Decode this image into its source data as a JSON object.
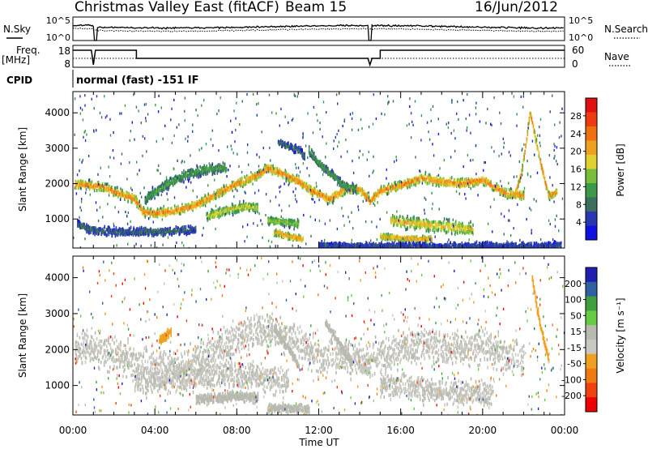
{
  "header": {
    "station": "Christmas Valley East (fitACF)",
    "beam": "Beam 15",
    "date": "16/Jun/2012"
  },
  "aux": {
    "nsky_label": "N.Sky",
    "nsearch_label": "N.Search",
    "freq_label_1": "Freq.",
    "freq_label_2": "[MHz]",
    "nave_label": "Nave",
    "cpid_label": "CPID",
    "cpid_text": "normal (fast) -151 IF",
    "noise_left_ticks": [
      "10^5",
      "10^0"
    ],
    "noise_right_ticks": [
      "10^5",
      "10^0"
    ],
    "freq_ticks": [
      "18",
      "8"
    ],
    "nave_ticks": [
      "60",
      "0"
    ]
  },
  "colors": {
    "power_scale": [
      "#1010e0",
      "#2838b0",
      "#3a6f60",
      "#3a9a48",
      "#78be3a",
      "#e0d030",
      "#f0a020",
      "#f07010",
      "#f03a10",
      "#e01010"
    ],
    "velocity_scale": [
      "#ee0000",
      "#f04010",
      "#f07a10",
      "#f0a020",
      "#c8c8c0",
      "#b8bab0",
      "#66cc44",
      "#40a040",
      "#3060a0",
      "#2020b0"
    ]
  },
  "chart_data": [
    {
      "type": "heatmap",
      "name": "power",
      "xlabel": "",
      "ylabel": "Slant Range [km]",
      "x_ticks": [
        "00:00",
        "04:00",
        "08:00",
        "12:00",
        "16:00",
        "20:00",
        "00:00"
      ],
      "xlim": [
        0,
        24
      ],
      "y_ticks": [
        1000,
        2000,
        3000,
        4000
      ],
      "ylim": [
        180,
        4600
      ],
      "colorbar": {
        "label": "Power [dB]",
        "ticks": [
          "4",
          "8",
          "12",
          "16",
          "20",
          "24",
          "28"
        ],
        "range": [
          0,
          32
        ]
      },
      "features": [
        {
          "points": [
            [
              0.1,
              2020
            ],
            [
              0.5,
              2010
            ],
            [
              1.0,
              1980
            ],
            [
              1.5,
              1940
            ],
            [
              2.0,
              1820
            ],
            [
              2.5,
              1720
            ],
            [
              3.0,
              1600
            ],
            [
              3.4,
              1240
            ],
            [
              4.0,
              1200
            ],
            [
              5.0,
              1280
            ],
            [
              6.0,
              1450
            ],
            [
              7.0,
              1750
            ],
            [
              8.0,
              2050
            ],
            [
              9.0,
              2280
            ],
            [
              9.5,
              2480
            ],
            [
              10.0,
              2380
            ],
            [
              11.0,
              2100
            ],
            [
              11.6,
              1850
            ],
            [
              12.0,
              1750
            ],
            [
              12.5,
              1600
            ],
            [
              13.3,
              1900
            ],
            [
              14.0,
              1880
            ],
            [
              14.5,
              1550
            ],
            [
              15.0,
              1850
            ],
            [
              16.0,
              2000
            ],
            [
              17.0,
              2200
            ],
            [
              18.0,
              2100
            ],
            [
              19.0,
              2050
            ],
            [
              20.0,
              2150
            ],
            [
              21.0,
              1800
            ],
            [
              21.5,
              1750
            ],
            [
              22.0,
              1700
            ]
          ],
          "width": 120,
          "value": 24
        },
        {
          "points": [
            [
              6.5,
              1100
            ],
            [
              7.5,
              1300
            ],
            [
              8.5,
              1400
            ],
            [
              9.0,
              1350
            ]
          ],
          "width": 130,
          "value": 18
        },
        {
          "points": [
            [
              9.5,
              1000
            ],
            [
              10.5,
              950
            ],
            [
              11.0,
              900
            ]
          ],
          "width": 110,
          "value": 16
        },
        {
          "points": [
            [
              9.8,
              680
            ],
            [
              10.5,
              560
            ],
            [
              11.2,
              480
            ]
          ],
          "width": 90,
          "value": 22
        },
        {
          "points": [
            [
              15.5,
              1000
            ],
            [
              17.0,
              900
            ],
            [
              18.5,
              820
            ],
            [
              19.5,
              760
            ]
          ],
          "width": 170,
          "value": 20
        },
        {
          "points": [
            [
              15.0,
              550
            ],
            [
              16.0,
              500
            ],
            [
              17.5,
              480
            ]
          ],
          "width": 80,
          "value": 22
        },
        {
          "points": [
            [
              11.5,
              3000
            ],
            [
              12.0,
              2600
            ],
            [
              12.6,
              2300
            ],
            [
              13.2,
              2000
            ],
            [
              13.8,
              1900
            ]
          ],
          "width": 110,
          "value": 12
        },
        {
          "points": [
            [
              3.5,
              1600
            ],
            [
              4.5,
              2000
            ],
            [
              5.5,
              2300
            ],
            [
              6.5,
              2450
            ],
            [
              7.5,
              2500
            ]
          ],
          "width": 150,
          "value": 12
        },
        {
          "points": [
            [
              10.0,
              3200
            ],
            [
              11.0,
              3000
            ],
            [
              11.3,
              2800
            ]
          ],
          "width": 100,
          "value": 8
        },
        {
          "points": [
            [
              0.2,
              900
            ],
            [
              0.8,
              760
            ],
            [
              1.3,
              700
            ],
            [
              3.0,
              680
            ],
            [
              4.5,
              700
            ],
            [
              6.0,
              760
            ]
          ],
          "width": 110,
          "value": 8
        },
        {
          "points": [
            [
              21.6,
              1800
            ],
            [
              21.9,
              2400
            ],
            [
              22.1,
              3200
            ],
            [
              22.3,
              4050
            ],
            [
              22.6,
              3200
            ],
            [
              22.9,
              2400
            ],
            [
              23.2,
              1700
            ],
            [
              23.6,
              1800
            ]
          ],
          "width": 90,
          "value": 24
        },
        {
          "points": [
            [
              12.0,
              300
            ],
            [
              14.0,
              280
            ],
            [
              16.0,
              300
            ],
            [
              18.0,
              260
            ],
            [
              20.0,
              300
            ],
            [
              22.0,
              280
            ],
            [
              23.8,
              300
            ]
          ],
          "width": 90,
          "value": 6
        }
      ]
    },
    {
      "type": "heatmap",
      "name": "velocity",
      "xlabel": "Time UT",
      "ylabel": "Slant Range [km]",
      "x_ticks": [
        "00:00",
        "04:00",
        "08:00",
        "12:00",
        "16:00",
        "20:00",
        "00:00"
      ],
      "xlim": [
        0,
        24
      ],
      "y_ticks": [
        1000,
        2000,
        3000,
        4000
      ],
      "ylim": [
        180,
        4600
      ],
      "colorbar": {
        "label": "Velocity [m s⁻¹]",
        "ticks": [
          "200",
          "100",
          "50",
          "15",
          "-15",
          "-50",
          "-100",
          "-200"
        ],
        "range": [
          -250,
          250
        ]
      },
      "features": [
        {
          "points": [
            [
              0.1,
              2100
            ],
            [
              1.0,
              2050
            ],
            [
              2.0,
              1900
            ],
            [
              3.0,
              1700
            ],
            [
              4.0,
              1550
            ],
            [
              5.0,
              1550
            ],
            [
              6.0,
              1750
            ],
            [
              7.0,
              2050
            ],
            [
              8.0,
              2350
            ],
            [
              9.0,
              2600
            ],
            [
              10.0,
              2500
            ],
            [
              11.0,
              2200
            ],
            [
              12.0,
              1800
            ],
            [
              13.0,
              1850
            ],
            [
              14.0,
              1800
            ],
            [
              15.0,
              1900
            ],
            [
              16.0,
              2050
            ],
            [
              17.0,
              2200
            ],
            [
              18.0,
              2100
            ],
            [
              19.0,
              2050
            ],
            [
              20.0,
              2150
            ],
            [
              21.0,
              1900
            ],
            [
              22.0,
              1750
            ]
          ],
          "width": 480,
          "value": 0
        },
        {
          "points": [
            [
              3.0,
              1150
            ],
            [
              5.0,
              1250
            ],
            [
              7.0,
              1350
            ],
            [
              9.0,
              1300
            ],
            [
              10.5,
              1100
            ]
          ],
          "width": 380,
          "value": 0
        },
        {
          "points": [
            [
              15.0,
              1100
            ],
            [
              17.0,
              950
            ],
            [
              19.0,
              850
            ],
            [
              20.5,
              800
            ]
          ],
          "width": 350,
          "value": 0
        },
        {
          "points": [
            [
              6.0,
              650
            ],
            [
              7.0,
              700
            ],
            [
              8.0,
              750
            ],
            [
              9.0,
              700
            ]
          ],
          "width": 140,
          "value": 40
        },
        {
          "points": [
            [
              9.5,
              400
            ],
            [
              10.5,
              420
            ],
            [
              11.5,
              380
            ]
          ],
          "width": 120,
          "value": 40
        },
        {
          "points": [
            [
              9.8,
              2650
            ],
            [
              10.2,
              2300
            ],
            [
              10.6,
              2000
            ],
            [
              11.0,
              1600
            ]
          ],
          "width": 90,
          "value": 40
        },
        {
          "points": [
            [
              12.3,
              2800
            ],
            [
              12.8,
              2400
            ],
            [
              13.2,
              2000
            ],
            [
              13.6,
              1700
            ]
          ],
          "width": 110,
          "value": 40
        },
        {
          "points": [
            [
              22.4,
              4000
            ],
            [
              22.6,
              3300
            ],
            [
              22.8,
              2700
            ],
            [
              23.0,
              2200
            ],
            [
              23.2,
              1800
            ]
          ],
          "width": 110,
          "value": -70
        },
        {
          "points": [
            [
              4.2,
              2300
            ],
            [
              4.8,
              2550
            ]
          ],
          "width": 120,
          "value": -60
        },
        {
          "points": [
            [
              14.0,
              1500
            ],
            [
              14.5,
              1400
            ]
          ],
          "width": 100,
          "value": -40
        }
      ]
    }
  ]
}
